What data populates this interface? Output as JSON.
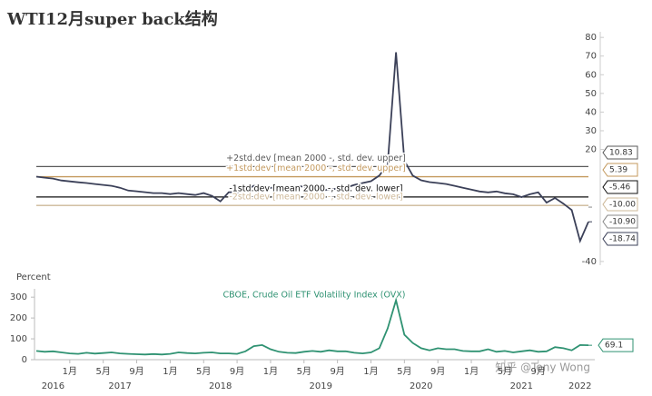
{
  "chart_data": [
    {
      "type": "line",
      "title": "WTI12月super back结构",
      "x": [
        "2016-09",
        "2016-10",
        "2016-11",
        "2016-12",
        "2017-01",
        "2017-02",
        "2017-03",
        "2017-04",
        "2017-05",
        "2017-06",
        "2017-07",
        "2017-08",
        "2017-09",
        "2017-10",
        "2017-11",
        "2017-12",
        "2018-01",
        "2018-02",
        "2018-03",
        "2018-04",
        "2018-05",
        "2018-06",
        "2018-07",
        "2018-08",
        "2018-09",
        "2018-10",
        "2018-11",
        "2018-12",
        "2019-01",
        "2019-02",
        "2019-03",
        "2019-04",
        "2019-05",
        "2019-06",
        "2019-07",
        "2019-08",
        "2019-09",
        "2019-10",
        "2019-11",
        "2019-12",
        "2020-01",
        "2020-02",
        "2020-03",
        "2020-04",
        "2020-05",
        "2020-06",
        "2020-07",
        "2020-08",
        "2020-09",
        "2020-10",
        "2020-11",
        "2020-12",
        "2021-01",
        "2021-02",
        "2021-03",
        "2021-04",
        "2021-05",
        "2021-06",
        "2021-07",
        "2021-08",
        "2021-09",
        "2021-10",
        "2021-11",
        "2021-12",
        "2022-01",
        "2022-02",
        "2022-03"
      ],
      "values": [
        5.4,
        4.9,
        4.4,
        3.4,
        2.9,
        2.4,
        2.0,
        1.5,
        1.0,
        0.5,
        -0.5,
        -2.0,
        -2.4,
        -2.9,
        -3.4,
        -3.4,
        -3.9,
        -3.4,
        -3.9,
        -4.4,
        -3.4,
        -4.9,
        -7.8,
        -2.9,
        -2.9,
        -2.0,
        0.5,
        0,
        -0.5,
        -1.0,
        -0.5,
        0.5,
        0,
        -1.5,
        -2.0,
        -1.5,
        -1.0,
        -0.5,
        1.0,
        2.0,
        3.0,
        6.0,
        12.0,
        72.0,
        14.0,
        6.0,
        3.5,
        2.5,
        2.0,
        1.5,
        0.5,
        -0.5,
        -1.5,
        -2.5,
        -3.0,
        -2.5,
        -3.5,
        -4.0,
        -5.5,
        -4.0,
        -3.0,
        -8.5,
        -6.0,
        -9.0,
        -12.5,
        -29.0,
        -18.74
      ],
      "color": "#3b4058",
      "xlim": [
        "2016-09",
        "2022-03"
      ],
      "ylim": [
        -42,
        83
      ],
      "yticks": [
        80,
        70,
        60,
        50,
        40,
        30,
        20,
        -40
      ],
      "reference_lines": [
        {
          "name": "+2std.dev [mean 2000 -, std. dev. upper]",
          "value": 10.83,
          "color": "#5a5a5a"
        },
        {
          "name": "+1std.dev [mean 2000 -, std. dev. upper]",
          "value": 5.39,
          "color": "#c49a5e"
        },
        {
          "name": "-1std.dev [mean 2000 -, std. dev. lower]",
          "value": -5.46,
          "color": "#111111"
        },
        {
          "name": "-2std.dev [mean 2000 -, std. dev. lower]",
          "value": -10,
          "value_label": "-10.00",
          "color": "#cdb898"
        }
      ],
      "extra_tags": [
        {
          "value": -10.9,
          "label": "-10.90",
          "color": "#8a8a8a"
        }
      ]
    },
    {
      "type": "line",
      "title": "CBOE, Crude Oil ETF Volatility Index (OVX)",
      "ylabel": "Percent",
      "x": [
        "2016-09",
        "2016-10",
        "2016-11",
        "2016-12",
        "2017-01",
        "2017-02",
        "2017-03",
        "2017-04",
        "2017-05",
        "2017-06",
        "2017-07",
        "2017-08",
        "2017-09",
        "2017-10",
        "2017-11",
        "2017-12",
        "2018-01",
        "2018-02",
        "2018-03",
        "2018-04",
        "2018-05",
        "2018-06",
        "2018-07",
        "2018-08",
        "2018-09",
        "2018-10",
        "2018-11",
        "2018-12",
        "2019-01",
        "2019-02",
        "2019-03",
        "2019-04",
        "2019-05",
        "2019-06",
        "2019-07",
        "2019-08",
        "2019-09",
        "2019-10",
        "2019-11",
        "2019-12",
        "2020-01",
        "2020-02",
        "2020-03",
        "2020-04",
        "2020-05",
        "2020-06",
        "2020-07",
        "2020-08",
        "2020-09",
        "2020-10",
        "2020-11",
        "2020-12",
        "2021-01",
        "2021-02",
        "2021-03",
        "2021-04",
        "2021-05",
        "2021-06",
        "2021-07",
        "2021-08",
        "2021-09",
        "2021-10",
        "2021-11",
        "2021-12",
        "2022-01",
        "2022-02",
        "2022-03"
      ],
      "values": [
        42,
        38,
        40,
        35,
        30,
        28,
        33,
        29,
        32,
        35,
        30,
        28,
        26,
        25,
        27,
        25,
        28,
        35,
        32,
        30,
        33,
        35,
        30,
        30,
        28,
        40,
        65,
        70,
        50,
        38,
        33,
        32,
        38,
        42,
        38,
        45,
        40,
        40,
        33,
        30,
        35,
        55,
        150,
        285,
        120,
        80,
        55,
        45,
        55,
        50,
        50,
        42,
        40,
        40,
        50,
        38,
        42,
        35,
        40,
        45,
        38,
        40,
        60,
        55,
        45,
        70,
        69.1
      ],
      "color": "#2f9272",
      "xlim": [
        "2016-09",
        "2022-03"
      ],
      "ylim": [
        0,
        340
      ],
      "yticks": [
        0,
        100,
        200,
        300
      ],
      "xticks": [
        {
          "value": "2017-01",
          "label": "1月"
        },
        {
          "value": "2017-05",
          "label": "5月"
        },
        {
          "value": "2017-09",
          "label": "9月"
        },
        {
          "value": "2018-01",
          "label": "1月"
        },
        {
          "value": "2018-05",
          "label": "5月"
        },
        {
          "value": "2018-09",
          "label": "9月"
        },
        {
          "value": "2019-01",
          "label": "1月"
        },
        {
          "value": "2019-05",
          "label": "5月"
        },
        {
          "value": "2019-09",
          "label": "9月"
        },
        {
          "value": "2020-01",
          "label": "1月"
        },
        {
          "value": "2020-05",
          "label": "5月"
        },
        {
          "value": "2020-09",
          "label": "9月"
        },
        {
          "value": "2021-01",
          "label": "1月"
        },
        {
          "value": "2021-05",
          "label": "5月"
        },
        {
          "value": "2021-09",
          "label": "9月"
        }
      ],
      "years": [
        "2016",
        "2017",
        "2018",
        "2019",
        "2020",
        "2021",
        "2022"
      ]
    }
  ],
  "watermark": "知乎 @Tony Wong"
}
